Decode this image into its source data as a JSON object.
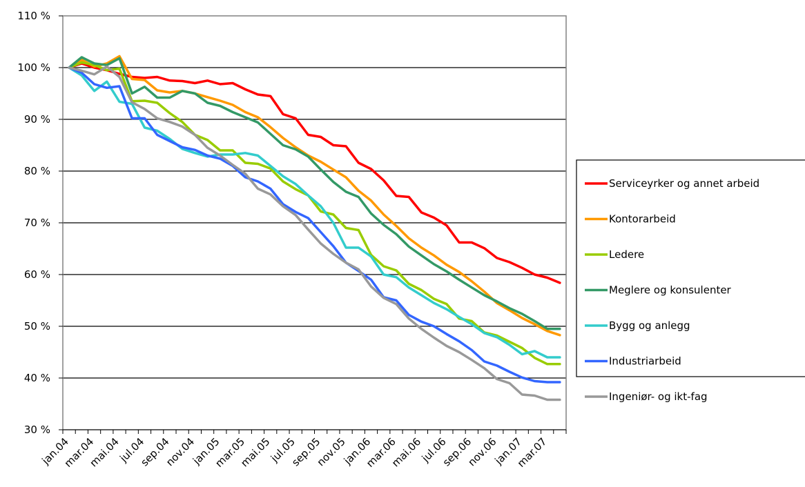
{
  "chart_data": {
    "type": "line",
    "title": "",
    "xlabel": "",
    "ylabel": "",
    "ylim": [
      30,
      110
    ],
    "y_ticks": [
      30,
      40,
      50,
      60,
      70,
      80,
      90,
      100,
      110
    ],
    "y_tick_suffix": " %",
    "x": [
      "jan.04",
      "feb.04",
      "mar.04",
      "apr.04",
      "mai.04",
      "jun.04",
      "jul.04",
      "aug.04",
      "sep.04",
      "okt.04",
      "nov.04",
      "des.04",
      "jan.05",
      "feb.05",
      "mar.05",
      "apr.05",
      "mai.05",
      "jun.05",
      "jul.05",
      "aug.05",
      "sep.05",
      "okt.05",
      "nov.05",
      "des.05",
      "jan.06",
      "feb.06",
      "mar.06",
      "apr.06",
      "mai.06",
      "jun.06",
      "jul.06",
      "aug.06",
      "sep.06",
      "okt.06",
      "nov.06",
      "des.06",
      "jan.07",
      "feb.07",
      "mar.07",
      "apr.07"
    ],
    "x_tick_labels": [
      "jan.04",
      "mar.04",
      "mai.04",
      "jul.04",
      "sep.04",
      "nov.04",
      "jan.05",
      "mar.05",
      "mai.05",
      "jul.05",
      "sep.05",
      "nov.05",
      "jan.06",
      "mar.06",
      "mai.06",
      "jul.06",
      "sep.06",
      "nov.06",
      "jan.07",
      "mar.07"
    ],
    "grid": "horizontal",
    "legend_position": "right",
    "series": [
      {
        "name": "Serviceyrker og annet arbeid",
        "color": "#ff0000",
        "values": [
          100,
          100.8,
          100,
          99.5,
          98.8,
          98.2,
          98,
          98.2,
          97.5,
          97.4,
          97,
          97.5,
          96.8,
          97,
          95.8,
          94.8,
          94.5,
          91,
          90.2,
          87,
          86.6,
          85,
          84.8,
          81.6,
          80.4,
          78.2,
          75.2,
          75,
          72,
          71,
          69.5,
          66.2,
          66.2,
          65.1,
          63.2,
          62.4,
          61.3,
          60,
          59.4,
          58.4
        ]
      },
      {
        "name": "Kontorarbeid",
        "color": "#ff9900",
        "values": [
          100,
          101.5,
          100.2,
          100.8,
          102.2,
          97.8,
          97.6,
          95.6,
          95.2,
          95.5,
          95,
          94.3,
          93.6,
          92.8,
          91.4,
          90.4,
          88.5,
          86.4,
          84.6,
          83,
          81.8,
          80.3,
          78.8,
          76.2,
          74.3,
          71.6,
          69.4,
          67,
          65.2,
          63.7,
          61.9,
          60.5,
          58.7,
          56.7,
          54.5,
          53.1,
          51.6,
          50.4,
          49.1,
          48.3
        ]
      },
      {
        "name": "Ledere",
        "color": "#99cc00",
        "values": [
          100,
          101,
          100.5,
          99.5,
          99.8,
          93.5,
          93.6,
          93.2,
          91.2,
          89.5,
          87,
          86,
          84,
          84,
          81.6,
          81.4,
          80.5,
          78,
          76.5,
          75.3,
          72.2,
          71.6,
          69,
          68.6,
          63.8,
          61.6,
          60.8,
          58.2,
          57,
          55.3,
          54.3,
          51.5,
          51,
          48.8,
          48.2,
          47,
          45.8,
          43.9,
          42.7,
          42.7
        ]
      },
      {
        "name": "Meglere og konsulenter",
        "color": "#339966",
        "values": [
          100,
          102,
          100.8,
          100.5,
          101.8,
          95,
          96.3,
          94.2,
          94.2,
          95.5,
          95,
          93.2,
          92.6,
          91.4,
          90.4,
          89.4,
          87.2,
          85,
          84.2,
          82.8,
          80.3,
          77.9,
          76,
          75,
          71.8,
          69.6,
          67.8,
          65.4,
          63.7,
          62,
          60.6,
          59,
          57.5,
          56,
          54.8,
          53.5,
          52.4,
          51,
          49.5,
          49.5
        ]
      },
      {
        "name": "Bygg og anlegg",
        "color": "#33cccc",
        "values": [
          100,
          98.5,
          95.5,
          97.3,
          93.4,
          93,
          88.4,
          87.8,
          86.2,
          84.3,
          83.5,
          82.8,
          83.2,
          83.2,
          83.5,
          83,
          81,
          79,
          77.5,
          75.3,
          73.2,
          70,
          65.2,
          65.2,
          63.5,
          60,
          59.5,
          57.5,
          56,
          54.5,
          53.3,
          51.8,
          50.4,
          48.7,
          47.9,
          46.4,
          44.6,
          45.2,
          44,
          44
        ]
      },
      {
        "name": "Industriarbeid",
        "color": "#3366ff",
        "values": [
          100,
          99,
          96.8,
          96.1,
          96.4,
          90.2,
          90.2,
          87,
          85.8,
          84.6,
          84.1,
          83,
          82.4,
          81,
          78.8,
          78,
          76.6,
          73.6,
          72.1,
          70.9,
          68.2,
          65.5,
          62.3,
          60.7,
          59,
          55.6,
          55,
          52.2,
          50.9,
          50,
          48.5,
          47.1,
          45.4,
          43.2,
          42.4,
          41.2,
          40.1,
          39.4,
          39.2,
          39.2
        ]
      },
      {
        "name": "Ingeniør- og ikt-fag",
        "color": "#999999",
        "values": [
          100,
          99.4,
          98.7,
          100.2,
          98.2,
          93.3,
          92,
          90.2,
          89.5,
          88.6,
          87,
          84.5,
          83,
          81.2,
          79.5,
          76.6,
          75.5,
          73.2,
          71.5,
          68.7,
          66,
          64,
          62.3,
          61,
          57.7,
          55.5,
          54.3,
          51.5,
          49.5,
          47.8,
          46.2,
          45,
          43.5,
          41.9,
          39.8,
          39,
          36.8,
          36.6,
          35.8,
          35.8
        ]
      }
    ]
  }
}
